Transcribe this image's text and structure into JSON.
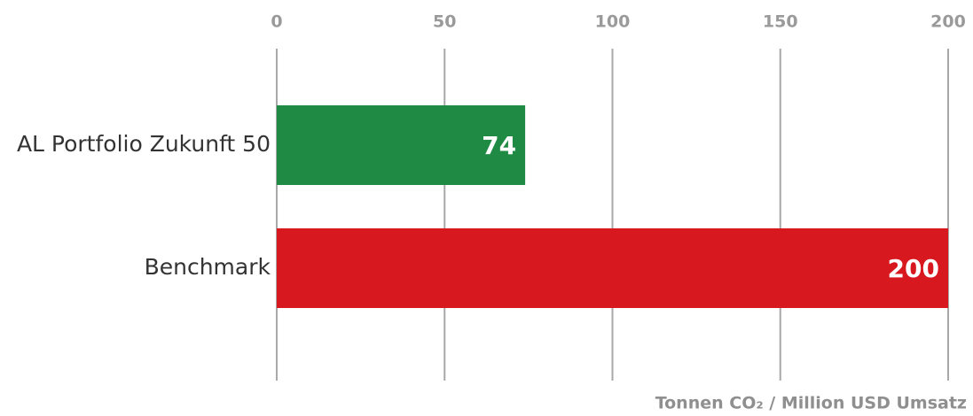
{
  "chart_data": {
    "type": "hbar",
    "categories": [
      "AL Portfolio Zukunft 50",
      "Benchmark"
    ],
    "values": [
      74,
      200
    ],
    "colors": [
      "#1f8a43",
      "#d7191f"
    ],
    "x_label": "Tonnen CO₂ / Million USD Umsatz",
    "xlim": [
      0,
      200
    ],
    "xticks": [
      0,
      50,
      100,
      150,
      200
    ],
    "grid": true
  }
}
